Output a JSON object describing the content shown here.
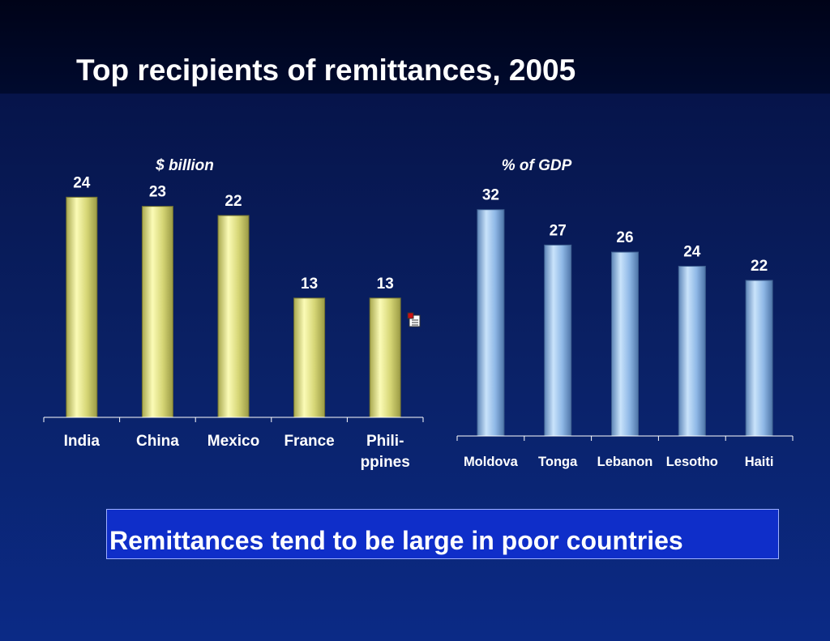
{
  "title": "Top recipients of remittances, 2005",
  "callout": "Remittances tend to be large in poor countries",
  "colors": {
    "left_bar": "#f2f29a",
    "right_bar": "#9cc6f2",
    "callout_bg": "#0f2ec9"
  },
  "chart_data": [
    {
      "type": "bar",
      "unit_label": "$ billion",
      "categories": [
        [
          "India"
        ],
        [
          "China"
        ],
        [
          "Mexico"
        ],
        [
          "France"
        ],
        [
          "Phili-",
          "ppines"
        ]
      ],
      "values": [
        24,
        23,
        22,
        13,
        13
      ],
      "title": "",
      "xlabel": "",
      "ylabel": "",
      "ylim": [
        0,
        25
      ],
      "grid": false,
      "legend": "none"
    },
    {
      "type": "bar",
      "unit_label": "% of GDP",
      "categories": [
        [
          "Moldova"
        ],
        [
          "Tonga"
        ],
        [
          "Lebanon"
        ],
        [
          "Lesotho"
        ],
        [
          "Haiti"
        ]
      ],
      "values": [
        32,
        27,
        26,
        24,
        22
      ],
      "title": "",
      "xlabel": "",
      "ylabel": "",
      "ylim": [
        0,
        33
      ],
      "grid": false,
      "legend": "none"
    }
  ]
}
